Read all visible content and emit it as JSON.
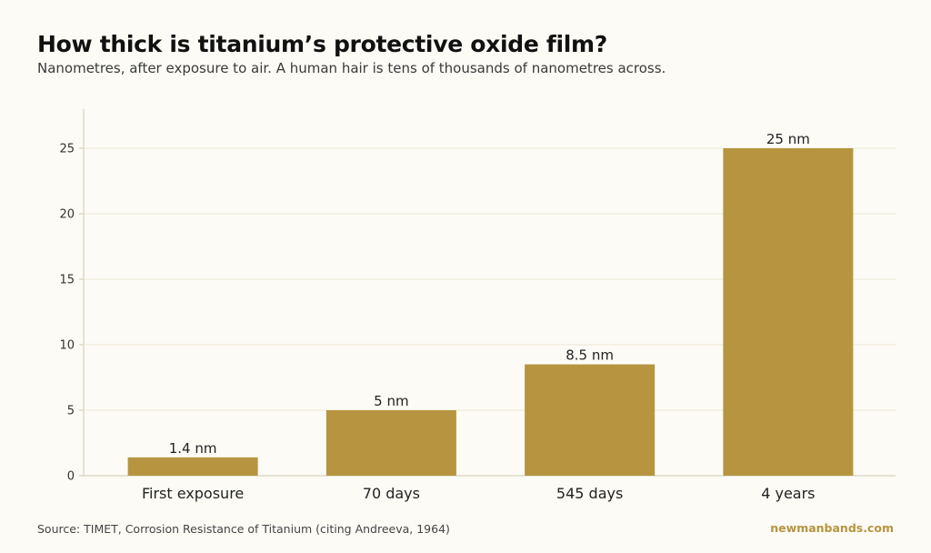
{
  "header": {
    "title": "How thick is titanium’s protective oxide film?",
    "subtitle": "Nanometres, after exposure to air. A human hair is tens of thousands of nanometres across."
  },
  "footer": {
    "source": "Source: TIMET, Corrosion Resistance of Titanium (citing Andreeva, 1964)",
    "brand": "newmanbands.com"
  },
  "colors": {
    "bar": "#b7943f",
    "brand": "#b7943f",
    "grid": "#ece7d4",
    "axis": "#cfc8b2",
    "background": "#fcfbf6"
  },
  "chart_data": {
    "type": "bar",
    "title": "How thick is titanium’s protective oxide film?",
    "subtitle": "Nanometres, after exposure to air. A human hair is tens of thousands of nanometres across.",
    "categories": [
      "First exposure",
      "70 days",
      "545 days",
      "4 years"
    ],
    "values": [
      1.4,
      5,
      8.5,
      25
    ],
    "data_labels": [
      "1.4 nm",
      "5 nm",
      "8.5 nm",
      "25 nm"
    ],
    "ylim": [
      0,
      28
    ],
    "yticks": [
      0,
      5,
      10,
      15,
      20,
      25
    ],
    "xlabel": "",
    "ylabel": "",
    "grid": true,
    "legend": "none"
  }
}
